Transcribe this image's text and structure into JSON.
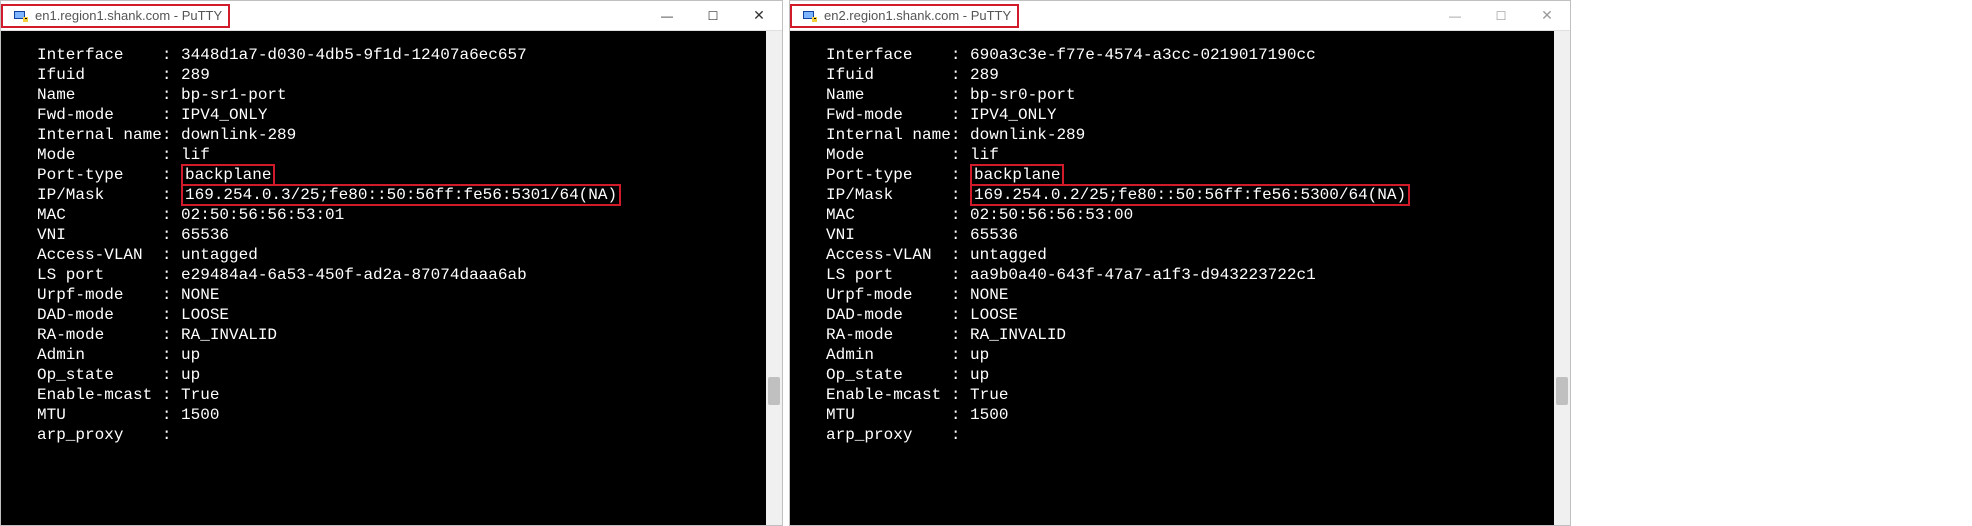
{
  "colors": {
    "highlight_border": "#d11a2a",
    "terminal_bg": "#000000",
    "terminal_fg": "#ffffff",
    "titlebar_fg": "#555555",
    "titlebar_fg_inactive": "#9a9a9a"
  },
  "windows": {
    "left": {
      "title": "en1.region1.shank.com - PuTTY",
      "active": true,
      "rows": [
        {
          "key": "Interface",
          "val": "3448d1a7-d030-4db5-9f1d-12407a6ec657"
        },
        {
          "key": "Ifuid",
          "val": "289"
        },
        {
          "key": "Name",
          "val": "bp-sr1-port"
        },
        {
          "key": "Fwd-mode",
          "val": "IPV4_ONLY"
        },
        {
          "key": "Internal name",
          "val": "downlink-289"
        },
        {
          "key": "Mode",
          "val": "lif"
        },
        {
          "key": "Port-type",
          "val": "backplane",
          "highlight": true
        },
        {
          "key": "IP/Mask",
          "val": "169.254.0.3/25;fe80::50:56ff:fe56:5301/64(NA)",
          "highlight": true
        },
        {
          "key": "MAC",
          "val": "02:50:56:56:53:01"
        },
        {
          "key": "VNI",
          "val": "65536"
        },
        {
          "key": "Access-VLAN",
          "val": "untagged"
        },
        {
          "key": "LS port",
          "val": "e29484a4-6a53-450f-ad2a-87074daaa6ab"
        },
        {
          "key": "Urpf-mode",
          "val": "NONE"
        },
        {
          "key": "DAD-mode",
          "val": "LOOSE"
        },
        {
          "key": "RA-mode",
          "val": "RA_INVALID"
        },
        {
          "key": "Admin",
          "val": "up"
        },
        {
          "key": "Op_state",
          "val": "up"
        },
        {
          "key": "Enable-mcast",
          "val": "True"
        },
        {
          "key": "MTU",
          "val": "1500"
        },
        {
          "key": "arp_proxy",
          "val": ""
        }
      ]
    },
    "right": {
      "title": "en2.region1.shank.com - PuTTY",
      "active": false,
      "rows": [
        {
          "key": "Interface",
          "val": "690a3c3e-f77e-4574-a3cc-0219017190cc"
        },
        {
          "key": "Ifuid",
          "val": "289"
        },
        {
          "key": "Name",
          "val": "bp-sr0-port"
        },
        {
          "key": "Fwd-mode",
          "val": "IPV4_ONLY"
        },
        {
          "key": "Internal name",
          "val": "downlink-289"
        },
        {
          "key": "Mode",
          "val": "lif"
        },
        {
          "key": "Port-type",
          "val": "backplane",
          "highlight": true
        },
        {
          "key": "IP/Mask",
          "val": "169.254.0.2/25;fe80::50:56ff:fe56:5300/64(NA)",
          "highlight": true
        },
        {
          "key": "MAC",
          "val": "02:50:56:56:53:00"
        },
        {
          "key": "VNI",
          "val": "65536"
        },
        {
          "key": "Access-VLAN",
          "val": "untagged"
        },
        {
          "key": "LS port",
          "val": "aa9b0a40-643f-47a7-a1f3-d943223722c1"
        },
        {
          "key": "Urpf-mode",
          "val": "NONE"
        },
        {
          "key": "DAD-mode",
          "val": "LOOSE"
        },
        {
          "key": "RA-mode",
          "val": "RA_INVALID"
        },
        {
          "key": "Admin",
          "val": "up"
        },
        {
          "key": "Op_state",
          "val": "up"
        },
        {
          "key": "Enable-mcast",
          "val": "True"
        },
        {
          "key": "MTU",
          "val": "1500"
        },
        {
          "key": "arp_proxy",
          "val": ""
        }
      ]
    }
  },
  "glyphs": {
    "minimize": "—",
    "maximize": "☐",
    "close": "✕"
  }
}
